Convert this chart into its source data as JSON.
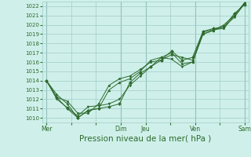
{
  "bg_color": "#cff0ea",
  "grid_color": "#a0ccc8",
  "line_color": "#2d6a2d",
  "marker_color": "#2d6a2d",
  "xlabel": "Pression niveau de la mer( hPa )",
  "xlabel_fontsize": 7.5,
  "ylim": [
    1009.5,
    1022.5
  ],
  "yticks": [
    1010,
    1011,
    1012,
    1013,
    1014,
    1015,
    1016,
    1017,
    1018,
    1019,
    1020,
    1021,
    1022
  ],
  "xtick_labels": [
    "Mer",
    "",
    "",
    "Dim",
    "Jeu",
    "",
    "Ven",
    "",
    "Sam"
  ],
  "xtick_positions": [
    0,
    1,
    2,
    3,
    4,
    5,
    6,
    7,
    8
  ],
  "vline_positions": [
    0,
    3,
    4,
    6,
    8
  ],
  "series": [
    [
      1014.0,
      1012.2,
      1011.0,
      1010.0,
      1010.8,
      1011.0,
      1011.2,
      1011.5,
      1013.8,
      1014.8,
      1015.5,
      1016.2,
      1017.2,
      1016.2,
      1016.5,
      1019.3,
      1019.6,
      1019.8,
      1021.2,
      1022.2
    ],
    [
      1014.0,
      1012.0,
      1011.1,
      1010.2,
      1011.2,
      1011.3,
      1011.5,
      1012.0,
      1013.5,
      1014.5,
      1015.5,
      1016.5,
      1016.3,
      1015.5,
      1016.0,
      1019.0,
      1019.4,
      1019.8,
      1020.8,
      1022.3
    ],
    [
      1014.0,
      1012.5,
      1011.5,
      1010.0,
      1010.8,
      1011.0,
      1013.0,
      1013.8,
      1014.2,
      1015.0,
      1016.2,
      1016.5,
      1017.0,
      1015.8,
      1016.0,
      1019.0,
      1019.4,
      1020.0,
      1021.0,
      1022.4
    ],
    [
      1014.0,
      1012.2,
      1011.8,
      1010.5,
      1010.5,
      1011.5,
      1013.5,
      1014.2,
      1014.5,
      1015.2,
      1016.0,
      1016.2,
      1016.8,
      1016.5,
      1016.2,
      1019.2,
      1019.5,
      1019.6,
      1021.0,
      1022.4
    ]
  ],
  "n_points": 20,
  "x_total": 8.0,
  "figsize": [
    3.2,
    2.0
  ],
  "dpi": 100
}
